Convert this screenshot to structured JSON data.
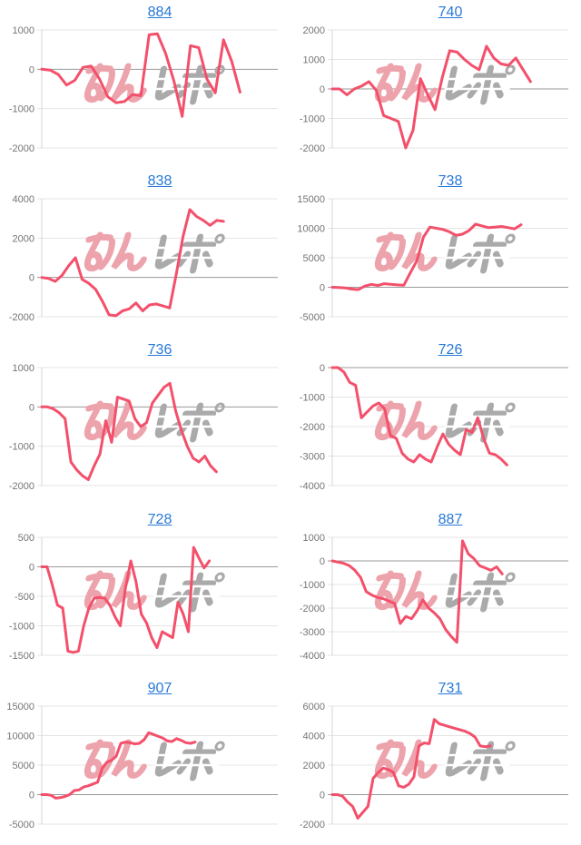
{
  "page": {
    "background": "#ffffff"
  },
  "style": {
    "line_color": "#f3506b",
    "grid_color": "#e4e4e4",
    "zero_line_color": "#9a9a9a",
    "axis_color": "#d4d4d4",
    "tick_label_color": "#757575",
    "title_color": "#2878d8"
  },
  "watermark": {
    "text": "みんレポ",
    "part1": "みん",
    "part2": "レポ",
    "part1_color": "#eda3ac",
    "part2_color": "#aaaaaa"
  },
  "chart_layout": {
    "grid": "horizontal-only",
    "legend": "none",
    "x_axis_labels": "none",
    "columns": 2,
    "rows": 5
  },
  "chart_data": [
    {
      "type": "line",
      "title": "884",
      "ylim": [
        -2000,
        1000
      ],
      "yticks": [
        1000,
        0,
        -1000,
        -2000
      ],
      "x_extent": 0.84,
      "values": [
        0,
        -20,
        -130,
        -400,
        -280,
        50,
        80,
        -250,
        -700,
        -850,
        -820,
        -640,
        -670,
        880,
        900,
        400,
        -300,
        -1200,
        600,
        550,
        -250,
        -600,
        750,
        200,
        -580
      ]
    },
    {
      "type": "line",
      "title": "740",
      "ylim": [
        -2000,
        2000
      ],
      "yticks": [
        2000,
        1000,
        0,
        -1000,
        -2000
      ],
      "x_extent": 0.84,
      "values": [
        0,
        0,
        -200,
        0,
        100,
        250,
        -50,
        -900,
        -1000,
        -1100,
        -2000,
        -1400,
        350,
        -200,
        -700,
        400,
        1300,
        1250,
        1000,
        800,
        650,
        1450,
        1050,
        850,
        800,
        1050,
        650,
        250
      ]
    },
    {
      "type": "line",
      "title": "838",
      "ylim": [
        -2000,
        4000
      ],
      "yticks": [
        4000,
        2000,
        0,
        -2000
      ],
      "x_extent": 0.77,
      "values": [
        0,
        -50,
        -200,
        100,
        600,
        1000,
        -100,
        -300,
        -600,
        -1200,
        -1900,
        -1950,
        -1700,
        -1600,
        -1300,
        -1700,
        -1400,
        -1350,
        -1450,
        -1550,
        200,
        2100,
        3450,
        3100,
        2900,
        2650,
        2900,
        2850
      ]
    },
    {
      "type": "line",
      "title": "738",
      "ylim": [
        -5000,
        15000
      ],
      "yticks": [
        15000,
        10000,
        5000,
        0,
        -5000
      ],
      "x_extent": 0.8,
      "values": [
        0,
        -50,
        -100,
        -300,
        -400,
        200,
        500,
        300,
        600,
        500,
        400,
        350,
        2500,
        4500,
        8500,
        10200,
        10000,
        9800,
        9400,
        8800,
        9000,
        9600,
        10700,
        10400,
        10100,
        10200,
        10300,
        10100,
        9900,
        10600
      ]
    },
    {
      "type": "line",
      "title": "736",
      "ylim": [
        -2000,
        1000
      ],
      "yticks": [
        1000,
        0,
        -1000,
        -2000
      ],
      "x_extent": 0.74,
      "values": [
        0,
        0,
        -50,
        -150,
        -300,
        -1400,
        -1600,
        -1750,
        -1850,
        -1500,
        -1200,
        -350,
        -900,
        250,
        200,
        150,
        -300,
        -500,
        -400,
        100,
        300,
        500,
        600,
        -100,
        -600,
        -1000,
        -1300,
        -1400,
        -1250,
        -1500,
        -1650
      ]
    },
    {
      "type": "line",
      "title": "726",
      "ylim": [
        -4000,
        0
      ],
      "yticks": [
        0,
        -1000,
        -2000,
        -3000,
        -4000
      ],
      "x_extent": 0.74,
      "values": [
        0,
        0,
        -150,
        -500,
        -600,
        -1700,
        -1500,
        -1300,
        -1200,
        -1400,
        -2300,
        -2400,
        -2900,
        -3100,
        -3200,
        -2950,
        -3100,
        -3200,
        -2700,
        -2250,
        -2600,
        -2800,
        -2950,
        -2100,
        -2200,
        -1700,
        -2400,
        -2900,
        -2950,
        -3100,
        -3300
      ]
    },
    {
      "type": "line",
      "title": "728",
      "ylim": [
        -1500,
        500
      ],
      "yticks": [
        500,
        0,
        -500,
        -1000,
        -1500
      ],
      "x_extent": 0.71,
      "values": [
        0,
        0,
        -300,
        -650,
        -700,
        -1430,
        -1450,
        -1430,
        -1000,
        -700,
        -530,
        -520,
        -530,
        -650,
        -850,
        -1000,
        -350,
        100,
        -250,
        -800,
        -950,
        -1200,
        -1370,
        -1100,
        -1150,
        -1200,
        -600,
        -800,
        -1100,
        330,
        150,
        -20,
        100
      ]
    },
    {
      "type": "line",
      "title": "887",
      "ylim": [
        -4000,
        1000
      ],
      "yticks": [
        1000,
        0,
        -1000,
        -2000,
        -3000,
        -4000
      ],
      "x_extent": 0.72,
      "values": [
        0,
        -50,
        -100,
        -200,
        -400,
        -700,
        -1300,
        -1450,
        -1550,
        -1600,
        -1700,
        -1800,
        -2650,
        -2350,
        -2450,
        -2100,
        -1650,
        -2000,
        -2200,
        -2450,
        -2900,
        -3200,
        -3450,
        850,
        300,
        100,
        -200,
        -300,
        -400,
        -250,
        -550
      ]
    },
    {
      "type": "line",
      "title": "907",
      "ylim": [
        -5000,
        15000
      ],
      "yticks": [
        15000,
        10000,
        5000,
        0,
        -5000
      ],
      "x_extent": 0.65,
      "values": [
        0,
        0,
        -100,
        -600,
        -500,
        -300,
        0,
        700,
        800,
        1300,
        1500,
        1800,
        2100,
        4500,
        5500,
        5800,
        6500,
        8700,
        8900,
        8800,
        8600,
        8700,
        9300,
        10500,
        10200,
        9900,
        9600,
        9100,
        9000,
        9500,
        9200,
        8800,
        8700,
        8900
      ]
    },
    {
      "type": "line",
      "title": "731",
      "ylim": [
        -2000,
        6000
      ],
      "yticks": [
        6000,
        4000,
        2000,
        0,
        -2000
      ],
      "x_extent": 0.67,
      "values": [
        0,
        0,
        -100,
        -500,
        -800,
        -1600,
        -1200,
        -800,
        1100,
        1500,
        1800,
        1700,
        1500,
        600,
        500,
        700,
        1200,
        3300,
        3500,
        3450,
        5100,
        4800,
        4700,
        4600,
        4500,
        4400,
        4300,
        4150,
        3900,
        3300,
        3250,
        3300
      ]
    }
  ]
}
